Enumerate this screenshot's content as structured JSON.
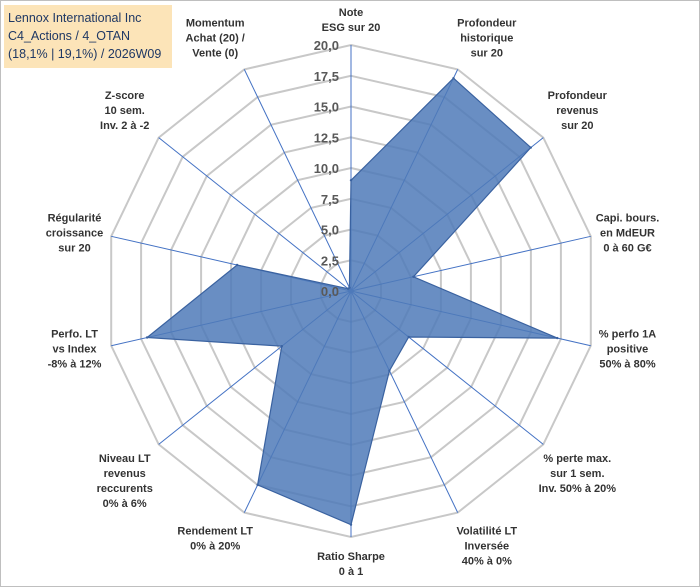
{
  "info": {
    "line1": "Lennox International Inc",
    "line2": "C4_Actions / 4_OTAN",
    "line3": "(18,1% | 19,1%) / 2026W09"
  },
  "colors": {
    "fill": "#4f7ab8",
    "stroke": "#3a62a0",
    "grid": "#c8c8c8",
    "spoke": "#4472c4",
    "box": "#fce4b8"
  },
  "chart_data": {
    "type": "radar",
    "title": "",
    "range": [
      0,
      20
    ],
    "ticks": [
      "0,0",
      "2,5",
      "5,0",
      "7,5",
      "10,0",
      "12,5",
      "15,0",
      "17,5",
      "20,0"
    ],
    "axes": [
      {
        "lines": [
          "Note",
          "ESG sur 20"
        ]
      },
      {
        "lines": [
          "Profondeur",
          "historique",
          "sur 20"
        ]
      },
      {
        "lines": [
          "Profondeur",
          "revenus",
          "sur 20"
        ]
      },
      {
        "lines": [
          "Capi. bours.",
          "en MdEUR",
          "0 à 60 G€"
        ]
      },
      {
        "lines": [
          "% perfo 1A",
          "positive",
          "50% à 80%"
        ]
      },
      {
        "lines": [
          "% perte max.",
          "sur 1 sem.",
          "Inv. 50% à 20%"
        ]
      },
      {
        "lines": [
          "Volatilité LT",
          "Inversée",
          "40% à 0%"
        ]
      },
      {
        "lines": [
          "Ratio Sharpe",
          "0 à 1"
        ]
      },
      {
        "lines": [
          "Rendement LT",
          "0% à 20%"
        ]
      },
      {
        "lines": [
          "Niveau LT",
          "revenus",
          "reccurents",
          "0% à 6%"
        ]
      },
      {
        "lines": [
          "Perfo. LT",
          "vs Index",
          "-8% à 12%"
        ]
      },
      {
        "lines": [
          "Régularité",
          "croissance",
          "sur 20"
        ]
      },
      {
        "lines": [
          "Z-score",
          "10 sem.",
          "Inv. 2 à -2"
        ]
      },
      {
        "lines": [
          "Momentum",
          "Achat (20) /",
          "Vente (0)"
        ]
      }
    ],
    "values": [
      9.0,
      19.2,
      18.7,
      5.2,
      17.2,
      6.0,
      7.2,
      19.0,
      17.5,
      7.2,
      17.0,
      9.5,
      0.3,
      0.3
    ]
  }
}
